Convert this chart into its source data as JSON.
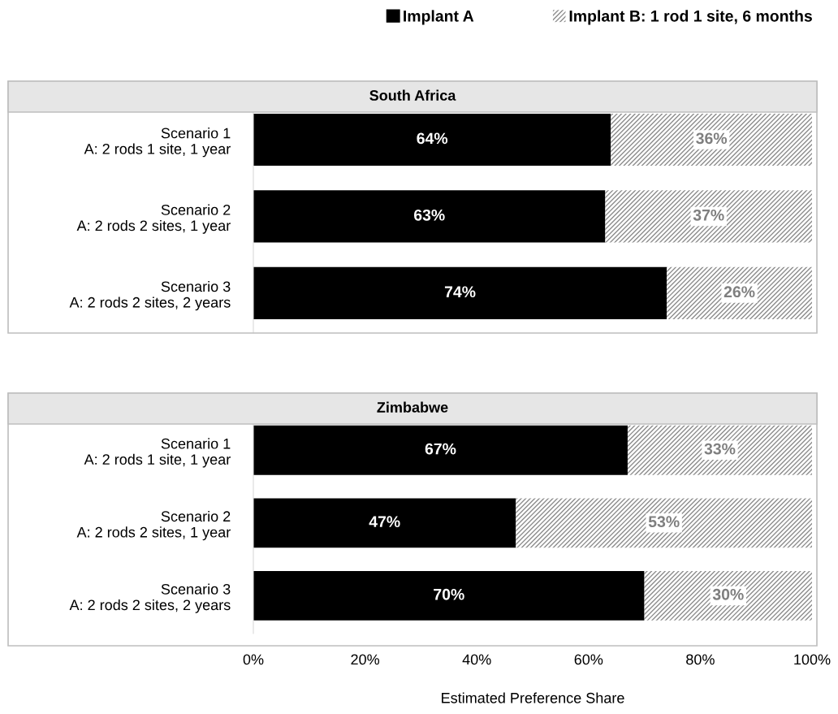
{
  "chart_data": [
    {
      "type": "bar",
      "orientation": "horizontal",
      "stacked": true,
      "title": "South Africa",
      "categories": [
        "Scenario 1\nA: 2 rods 1 site, 1 year",
        "Scenario 2\nA: 2 rods 2 sites, 1 year",
        "Scenario 3\nA: 2 rods 2 sites, 2 years"
      ],
      "series": [
        {
          "name": "Implant A",
          "color": "#000000",
          "values": [
            64,
            63,
            74
          ],
          "value_labels": [
            "64%",
            "63%",
            "74%"
          ]
        },
        {
          "name": "Implant B: 1 rod 1 site, 6 months",
          "color": "#8c8c8c",
          "values": [
            36,
            37,
            26
          ],
          "value_labels": [
            "36%",
            "37%",
            "26%"
          ]
        }
      ],
      "xlim": [
        0,
        100
      ],
      "tick_labels": "y",
      "legend": "top",
      "grid": false
    },
    {
      "type": "bar",
      "orientation": "horizontal",
      "stacked": true,
      "title": "Zimbabwe",
      "categories": [
        "Scenario 1\nA: 2 rods 1 site, 1 year",
        "Scenario 2\nA: 2 rods 2 sites, 1 year",
        "Scenario 3\nA: 2 rods 2 sites, 2 years"
      ],
      "series": [
        {
          "color": "#000000",
          "values": [
            67,
            47,
            70
          ],
          "value_labels": [
            "67%",
            "47%",
            "70%"
          ]
        },
        {
          "color": "#8c8c8c",
          "values": [
            33,
            53,
            30
          ],
          "value_labels": [
            "33%",
            "53%",
            "30%"
          ]
        }
      ],
      "xlim": [
        0,
        100
      ],
      "xticks": [
        {
          "value": 0,
          "label": "0%"
        },
        {
          "value": 20,
          "label": "20%"
        },
        {
          "value": 40,
          "label": "40%"
        },
        {
          "value": 60,
          "label": "60%"
        },
        {
          "value": 80,
          "label": "80%"
        },
        {
          "value": 100,
          "label": "100%"
        }
      ],
      "xlabel": "Estimated Preference Share",
      "grid": false
    }
  ]
}
